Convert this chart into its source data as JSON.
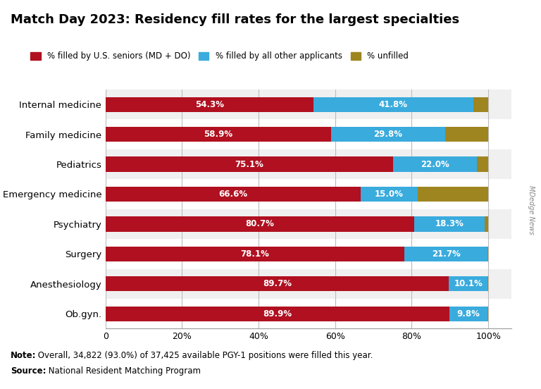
{
  "title": "Match Day 2023: Residency fill rates for the largest specialties",
  "categories": [
    "Internal medicine",
    "Family medicine",
    "Pediatrics",
    "Emergency medicine",
    "Psychiatry",
    "Surgery",
    "Anesthesiology",
    "Ob.gyn."
  ],
  "us_seniors": [
    54.3,
    58.9,
    75.1,
    66.6,
    80.7,
    78.1,
    89.7,
    89.9
  ],
  "other_applicants": [
    41.8,
    29.8,
    22.0,
    15.0,
    18.3,
    21.7,
    10.1,
    9.8
  ],
  "unfilled": [
    3.9,
    11.3,
    2.9,
    18.4,
    1.0,
    0.2,
    0.2,
    0.3
  ],
  "color_us": "#b01020",
  "color_other": "#3aabdd",
  "color_unfilled": "#9e8520",
  "color_row_light": "#f0f0f0",
  "color_row_white": "#ffffff",
  "legend_labels": [
    "% filled by U.S. seniors (MD + DO)",
    "% filled by all other applicants",
    "% unfilled"
  ],
  "note_bold": "Note:",
  "note_rest": " Overall, 34,822 (93.0%) of 37,425 available PGY-1 positions were filled this year.",
  "source_bold": "Source:",
  "source_rest": " National Resident Matching Program",
  "watermark": "MDedge News",
  "xlabel_ticks": [
    0,
    20,
    40,
    60,
    80,
    100
  ],
  "xlabel_labels": [
    "0",
    "20%",
    "40%",
    "60%",
    "80%",
    "100%"
  ]
}
